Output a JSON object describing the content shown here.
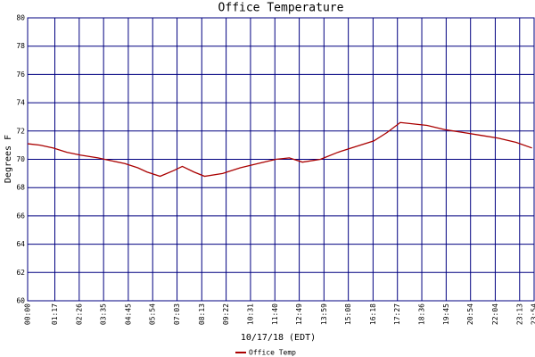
{
  "chart_data": {
    "type": "line",
    "title": "Office Temperature",
    "x_label": "10/17/18 (EDT)",
    "y_label": "Degrees F",
    "x": [
      0,
      35,
      73,
      111,
      149,
      199,
      237,
      275,
      312,
      338,
      375,
      413,
      438,
      471,
      501,
      552,
      602,
      652,
      703,
      741,
      778,
      829,
      879,
      929,
      980,
      1018,
      1055,
      1093,
      1131,
      1181,
      1232,
      1282,
      1332,
      1383,
      1428
    ],
    "series": [
      {
        "name": "Office Temp",
        "color": "#aa0000",
        "values": [
          71.1,
          71.0,
          70.8,
          70.5,
          70.3,
          70.1,
          69.9,
          69.7,
          69.4,
          69.1,
          68.8,
          69.2,
          69.5,
          69.1,
          68.8,
          69.0,
          69.4,
          69.7,
          70.0,
          70.1,
          69.8,
          70.0,
          70.5,
          70.9,
          71.3,
          71.9,
          72.6,
          72.5,
          72.4,
          72.1,
          71.9,
          71.7,
          71.5,
          71.2,
          70.8
        ]
      }
    ],
    "xlim": [
      0,
      1434
    ],
    "xticks": [
      {
        "value": 0,
        "label": "00:00"
      },
      {
        "value": 77,
        "label": "01:17"
      },
      {
        "value": 146,
        "label": "02:26"
      },
      {
        "value": 215,
        "label": "03:35"
      },
      {
        "value": 285,
        "label": "04:45"
      },
      {
        "value": 354,
        "label": "05:54"
      },
      {
        "value": 423,
        "label": "07:03"
      },
      {
        "value": 493,
        "label": "08:13"
      },
      {
        "value": 562,
        "label": "09:22"
      },
      {
        "value": 631,
        "label": "10:31"
      },
      {
        "value": 700,
        "label": "11:40"
      },
      {
        "value": 769,
        "label": "12:49"
      },
      {
        "value": 839,
        "label": "13:59"
      },
      {
        "value": 908,
        "label": "15:08"
      },
      {
        "value": 978,
        "label": "16:18"
      },
      {
        "value": 1047,
        "label": "17:27"
      },
      {
        "value": 1116,
        "label": "18:36"
      },
      {
        "value": 1185,
        "label": "19:45"
      },
      {
        "value": 1254,
        "label": "20:54"
      },
      {
        "value": 1324,
        "label": "22:04"
      },
      {
        "value": 1393,
        "label": "23:13"
      },
      {
        "value": 1434,
        "label": "23:54"
      }
    ],
    "ylim": [
      60,
      80
    ],
    "yticks": [
      60,
      62,
      64,
      66,
      68,
      70,
      72,
      74,
      76,
      78,
      80
    ],
    "grid": true,
    "grid_color": "#000080"
  }
}
